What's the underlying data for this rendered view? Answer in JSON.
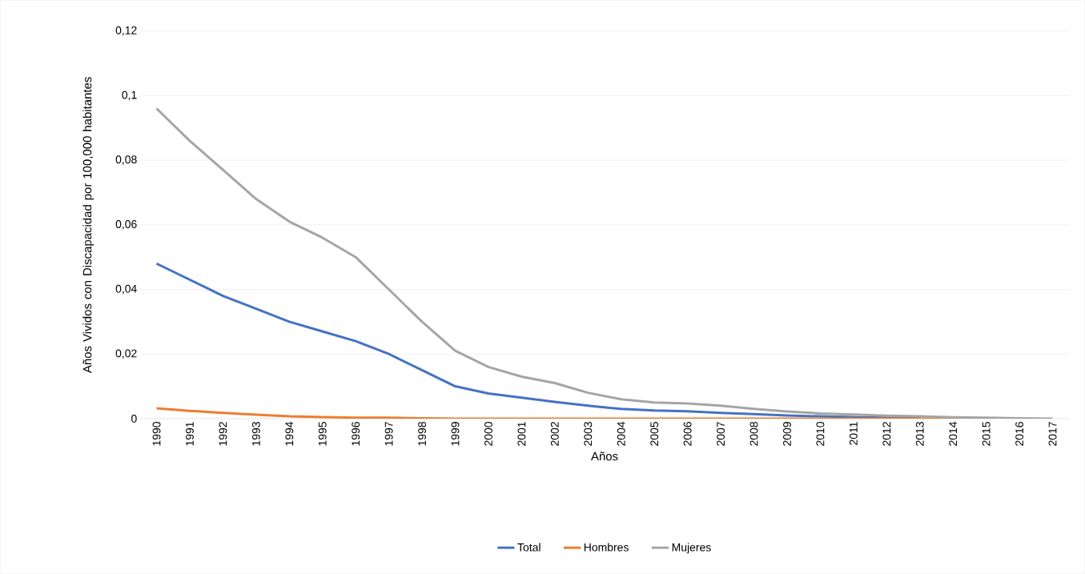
{
  "chart_data": {
    "type": "line",
    "xlabel": "Años",
    "ylabel": "Años Vividos con Discapacidad por 100,000 habitantes",
    "categories": [
      "1990",
      "1991",
      "1992",
      "1993",
      "1994",
      "1995",
      "1996",
      "1997",
      "1998",
      "1999",
      "2000",
      "2001",
      "2002",
      "2003",
      "2004",
      "2005",
      "2006",
      "2007",
      "2008",
      "2009",
      "2010",
      "2011",
      "2012",
      "2013",
      "2014",
      "2015",
      "2016",
      "2017"
    ],
    "series": [
      {
        "name": "Total",
        "color": "#4472c4",
        "values": [
          0.048,
          0.043,
          0.038,
          0.034,
          0.03,
          0.027,
          0.024,
          0.02,
          0.015,
          0.01,
          0.0078,
          0.0065,
          0.0052,
          0.004,
          0.003,
          0.0025,
          0.0023,
          0.0018,
          0.0014,
          0.001,
          0.0007,
          0.0005,
          0.0003,
          0.0002,
          null,
          null,
          null,
          null
        ]
      },
      {
        "name": "Hombres",
        "color": "#ed7d31",
        "values": [
          0.0032,
          0.0024,
          0.0018,
          0.0012,
          0.0007,
          0.0005,
          0.0003,
          0.0003,
          0.0001,
          0,
          0,
          0,
          0,
          0,
          0,
          0,
          0,
          0,
          0,
          0,
          0,
          0,
          0,
          0,
          0,
          0,
          null,
          null
        ]
      },
      {
        "name": "Mujeres",
        "color": "#a5a5a5",
        "values": [
          0.096,
          0.086,
          0.077,
          0.068,
          0.061,
          0.056,
          0.05,
          0.04,
          0.03,
          0.021,
          0.016,
          0.013,
          0.011,
          0.008,
          0.006,
          0.005,
          0.0047,
          0.004,
          0.003,
          0.0022,
          0.0016,
          0.0013,
          0.0009,
          0.0007,
          0.0004,
          0.0003,
          0.0001,
          0
        ]
      }
    ],
    "ylim": [
      0,
      0.12
    ],
    "yticks": [
      0,
      {
        "value": 0.02,
        "label": "0,02"
      },
      {
        "value": 0.04,
        "label": "0,04"
      },
      {
        "value": 0.06,
        "label": "0,06"
      },
      {
        "value": 0.08,
        "label": "0,08"
      },
      {
        "value": 0.1,
        "label": "0,1"
      },
      {
        "value": 0.12,
        "label": "0,12"
      }
    ],
    "grid": "y",
    "legend": "bottom",
    "marker": "none",
    "line_style": "solid"
  }
}
